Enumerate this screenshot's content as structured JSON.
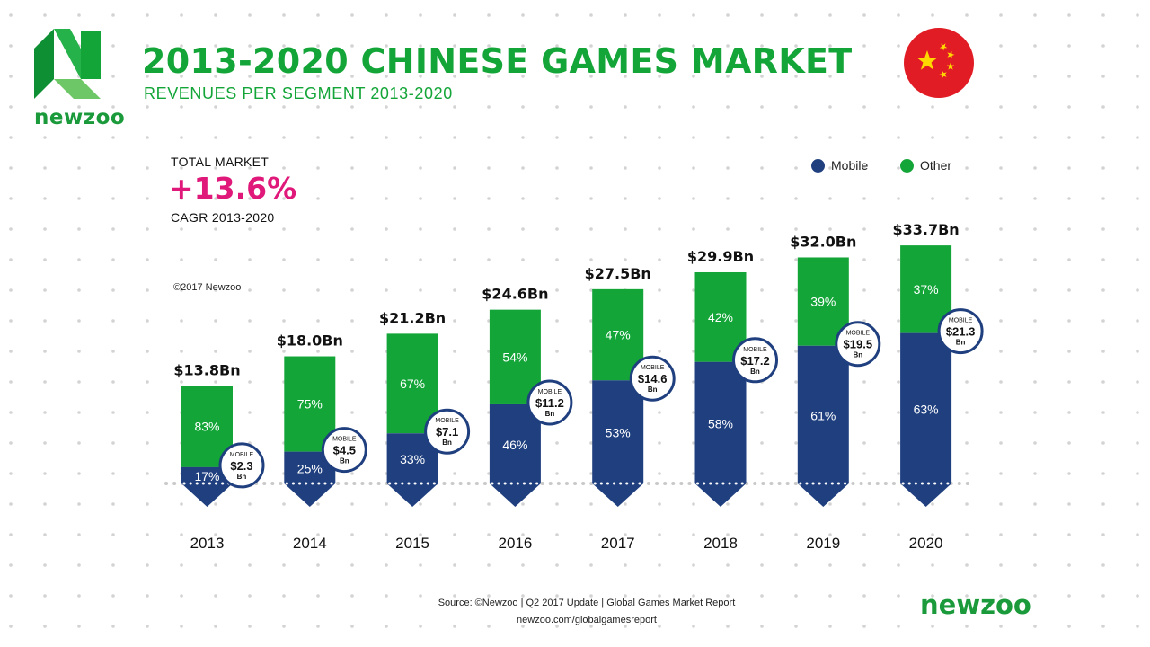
{
  "brand": {
    "name": "newzoo",
    "footer_name": "newzoo"
  },
  "header": {
    "title": "2013-2020 CHINESE GAMES MARKET",
    "subtitle": "REVENUES PER SEGMENT 2013-2020"
  },
  "total_market": {
    "label": "TOTAL MARKET",
    "value": "+13.6%",
    "caption": "CAGR 2013-2020"
  },
  "copyright": "©2017 Newzoo",
  "legend": [
    {
      "label": "Mobile",
      "color": "#1f3f7f"
    },
    {
      "label": "Other",
      "color": "#13a538"
    }
  ],
  "colors": {
    "mobile": "#1f3f7f",
    "other": "#13a538",
    "accent": "#e0187a",
    "flag_red": "#e11c24",
    "flag_star": "#ffd800"
  },
  "chart_data": {
    "type": "bar",
    "stacked": true,
    "categories": [
      "2013",
      "2014",
      "2015",
      "2016",
      "2017",
      "2018",
      "2019",
      "2020"
    ],
    "unit": "Bn",
    "totals": [
      13.8,
      18.0,
      21.2,
      24.6,
      27.5,
      29.9,
      32.0,
      33.7
    ],
    "total_labels": [
      "$13.8Bn",
      "$18.0Bn",
      "$21.2Bn",
      "$24.6Bn",
      "$27.5Bn",
      "$29.9Bn",
      "$32.0Bn",
      "$33.7Bn"
    ],
    "series": [
      {
        "name": "Mobile",
        "percent": [
          17,
          25,
          33,
          46,
          53,
          58,
          61,
          63
        ],
        "values": [
          2.3,
          4.5,
          7.1,
          11.2,
          14.6,
          17.2,
          19.5,
          21.3
        ]
      },
      {
        "name": "Other",
        "percent": [
          83,
          75,
          67,
          54,
          47,
          42,
          39,
          37
        ]
      }
    ],
    "percent_labels": {
      "mobile": [
        "17%",
        "25%",
        "33%",
        "46%",
        "53%",
        "58%",
        "61%",
        "63%"
      ],
      "other": [
        "83%",
        "75%",
        "67%",
        "54%",
        "47%",
        "42%",
        "39%",
        "37%"
      ]
    },
    "badge": {
      "title": "MOBILE",
      "values": [
        "$2.3",
        "$4.5",
        "$7.1",
        "$11.2",
        "$14.6",
        "$17.2",
        "$19.5",
        "$21.3"
      ],
      "unit": "Bn"
    }
  },
  "source": {
    "line1": "Source: ©Newzoo | Q2 2017 Update | Global Games Market Report",
    "line2": "newzoo.com/globalgamesreport"
  }
}
